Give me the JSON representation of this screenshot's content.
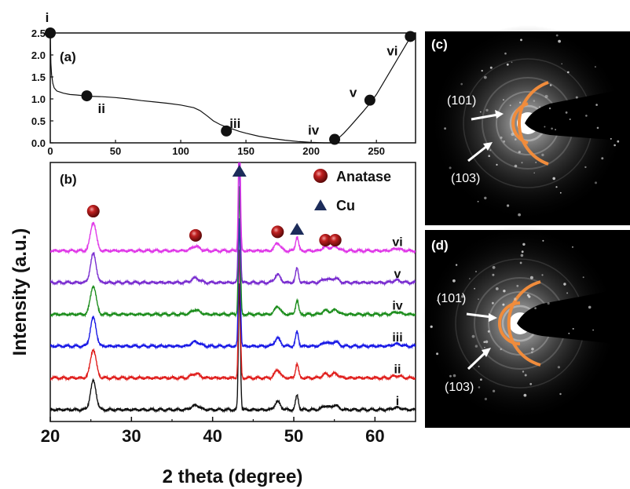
{
  "chart_data": [
    {
      "type": "line",
      "panel_label": "(a)",
      "xlim": [
        0,
        280
      ],
      "ylim": [
        0.0,
        2.5
      ],
      "x_ticks": [
        "0",
        "50",
        "100",
        "150",
        "200",
        "250"
      ],
      "y_ticks": [
        "0.0",
        "0.5",
        "1.0",
        "1.5",
        "2.0",
        "2.5"
      ],
      "curve": {
        "x": [
          0,
          0.5,
          1,
          2,
          3,
          5,
          8,
          10,
          15,
          20,
          30,
          40,
          50,
          60,
          70,
          80,
          90,
          100,
          110,
          115,
          120,
          125,
          130,
          135,
          140,
          145,
          150,
          160,
          170,
          180,
          190,
          200,
          210,
          216,
          218,
          220,
          225,
          230,
          235,
          240,
          245,
          250,
          255,
          260,
          265,
          270,
          275,
          278
        ],
        "y": [
          2.5,
          1.8,
          1.55,
          1.35,
          1.25,
          1.18,
          1.15,
          1.13,
          1.1,
          1.09,
          1.06,
          1.05,
          1.03,
          1.0,
          0.96,
          0.93,
          0.9,
          0.86,
          0.8,
          0.73,
          0.62,
          0.5,
          0.42,
          0.36,
          0.31,
          0.26,
          0.22,
          0.15,
          0.1,
          0.06,
          0.03,
          0.01,
          0.0,
          0.0,
          0.02,
          0.08,
          0.22,
          0.38,
          0.55,
          0.72,
          0.9,
          1.1,
          1.35,
          1.6,
          1.85,
          2.1,
          2.35,
          2.5
        ]
      },
      "points": [
        {
          "label": "i",
          "x": 0,
          "y": 2.5
        },
        {
          "label": "ii",
          "x": 28,
          "y": 1.07
        },
        {
          "label": "iii",
          "x": 135,
          "y": 0.27
        },
        {
          "label": "iv",
          "x": 218,
          "y": 0.08
        },
        {
          "label": "v",
          "x": 245,
          "y": 0.97
        },
        {
          "label": "vi",
          "x": 276,
          "y": 2.42
        }
      ]
    },
    {
      "type": "line",
      "panel_label": "(b)",
      "xlabel": "2 theta (degree)",
      "ylabel": "Intensity (a.u.)",
      "xlim": [
        20,
        65
      ],
      "x_ticks": [
        "20",
        "30",
        "40",
        "50",
        "60"
      ],
      "baseline_offsets": [
        0,
        1,
        2,
        3,
        4,
        5
      ],
      "series": [
        {
          "name": "i",
          "color": "#111111"
        },
        {
          "name": "ii",
          "color": "#e0201e"
        },
        {
          "name": "iii",
          "color": "#1a1ae6"
        },
        {
          "name": "iv",
          "color": "#1e8e1e"
        },
        {
          "name": "v",
          "color": "#7a2ed0"
        },
        {
          "name": "vi",
          "color": "#e03ae8"
        }
      ],
      "peaks": [
        {
          "position": 25.3,
          "height": 0.9,
          "width": 0.35
        },
        {
          "position": 37.9,
          "height": 0.14,
          "width": 0.5
        },
        {
          "position": 43.3,
          "height": 4.0,
          "width": 0.12
        },
        {
          "position": 48.0,
          "height": 0.25,
          "width": 0.35
        },
        {
          "position": 50.4,
          "height": 0.45,
          "width": 0.18
        },
        {
          "position": 53.9,
          "height": 0.12,
          "width": 0.4
        },
        {
          "position": 55.1,
          "height": 0.14,
          "width": 0.4
        },
        {
          "position": 62.7,
          "height": 0.07,
          "width": 0.5
        }
      ],
      "legend": [
        {
          "marker": "sphere",
          "label": "Anatase",
          "color": "#a31616"
        },
        {
          "marker": "triangle",
          "label": "Cu",
          "color": "#1c2c5a"
        }
      ],
      "anatase_markers": [
        25.3,
        37.9,
        48.0,
        53.9,
        55.1
      ],
      "cu_markers": [
        43.3,
        50.4
      ]
    }
  ],
  "tem_panels": [
    {
      "label": "(c)",
      "hkl_inner": "(101)",
      "hkl_outer": "(103)"
    },
    {
      "label": "(d)",
      "hkl_inner": "(101)",
      "hkl_outer": "(103)"
    }
  ]
}
